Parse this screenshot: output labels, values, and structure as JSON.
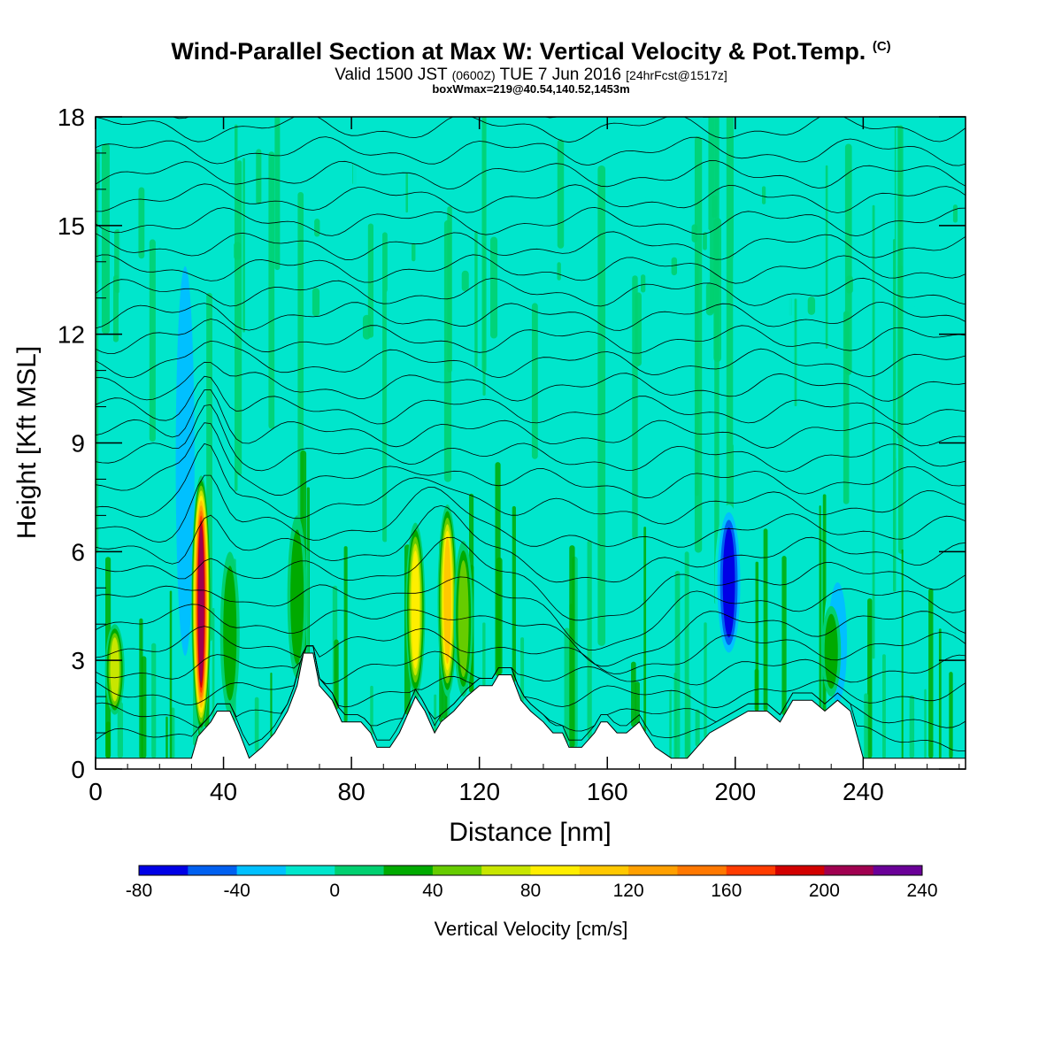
{
  "chart_data": {
    "type": "heatmap",
    "title": "Wind-Parallel Section at Max W: Vertical Velocity & Pot.Temp.",
    "title_mark": "(C)",
    "subtitle_prefix": "Valid 1500 JST",
    "subtitle_zulu": "(0600Z)",
    "subtitle_date": "TUE 7 Jun 2016",
    "subtitle_fcst": "[24hrFcst@1517z]",
    "subtitle2": "boxWmax=219@40.54,140.52,1453m",
    "xlabel": "Distance [nm]",
    "ylabel": "Height [Kft MSL]",
    "xlim": [
      0,
      272
    ],
    "ylim": [
      0,
      18
    ],
    "x_ticks": [
      0,
      40,
      80,
      120,
      160,
      200,
      240
    ],
    "y_ticks": [
      0,
      3,
      6,
      9,
      12,
      15,
      18
    ],
    "colorbar": {
      "label": "Vertical Velocity [cm/s]",
      "min": -80,
      "max": 240,
      "step": 20,
      "tick_values": [
        -80,
        -40,
        0,
        40,
        80,
        120,
        160,
        200,
        240
      ],
      "colors": [
        "#0000e6",
        "#0060f0",
        "#00c0ff",
        "#00e6cc",
        "#00d070",
        "#00aa00",
        "#66cc00",
        "#c8e600",
        "#ffee00",
        "#ffc800",
        "#ffa000",
        "#ff7800",
        "#ff3c00",
        "#d20000",
        "#a00050",
        "#6a0098"
      ]
    },
    "terrain_kft": [
      [
        0,
        0.3
      ],
      [
        10,
        0.3
      ],
      [
        20,
        0.3
      ],
      [
        30,
        0.3
      ],
      [
        32,
        0.9
      ],
      [
        36,
        1.3
      ],
      [
        38,
        1.6
      ],
      [
        42,
        1.6
      ],
      [
        45,
        1.0
      ],
      [
        48,
        0.3
      ],
      [
        52,
        0.6
      ],
      [
        56,
        1.0
      ],
      [
        60,
        1.6
      ],
      [
        63,
        2.3
      ],
      [
        65,
        3.2
      ],
      [
        68,
        3.2
      ],
      [
        70,
        2.3
      ],
      [
        74,
        1.9
      ],
      [
        77,
        1.3
      ],
      [
        80,
        1.3
      ],
      [
        83,
        1.3
      ],
      [
        86,
        1.0
      ],
      [
        88,
        0.6
      ],
      [
        92,
        0.6
      ],
      [
        95,
        1.0
      ],
      [
        98,
        1.6
      ],
      [
        100,
        2.0
      ],
      [
        103,
        1.6
      ],
      [
        106,
        1.0
      ],
      [
        108,
        1.3
      ],
      [
        112,
        1.6
      ],
      [
        116,
        2.0
      ],
      [
        120,
        2.3
      ],
      [
        124,
        2.3
      ],
      [
        126,
        2.6
      ],
      [
        130,
        2.6
      ],
      [
        133,
        1.9
      ],
      [
        136,
        1.6
      ],
      [
        140,
        1.3
      ],
      [
        143,
        1.0
      ],
      [
        146,
        1.0
      ],
      [
        148,
        0.6
      ],
      [
        152,
        0.6
      ],
      [
        156,
        1.0
      ],
      [
        158,
        1.3
      ],
      [
        160,
        1.3
      ],
      [
        163,
        1.0
      ],
      [
        166,
        1.0
      ],
      [
        170,
        1.3
      ],
      [
        172,
        1.0
      ],
      [
        175,
        0.6
      ],
      [
        180,
        0.3
      ],
      [
        185,
        0.3
      ],
      [
        188,
        0.6
      ],
      [
        192,
        1.0
      ],
      [
        198,
        1.3
      ],
      [
        204,
        1.6
      ],
      [
        210,
        1.6
      ],
      [
        214,
        1.3
      ],
      [
        218,
        1.9
      ],
      [
        224,
        1.9
      ],
      [
        228,
        1.6
      ],
      [
        232,
        1.9
      ],
      [
        236,
        1.6
      ],
      [
        240,
        0.3
      ],
      [
        272,
        0.3
      ]
    ],
    "updrafts": [
      {
        "x": 6,
        "z0": 1.5,
        "z1": 4.0,
        "w": 80
      },
      {
        "x": 33,
        "z0": 1.0,
        "z1": 8.1,
        "w": 219
      },
      {
        "x": 42,
        "z0": 1.5,
        "z1": 6.0,
        "w": 40
      },
      {
        "x": 63,
        "z0": 2.5,
        "z1": 7.0,
        "w": 40
      },
      {
        "x": 100,
        "z0": 2.0,
        "z1": 6.8,
        "w": 100
      },
      {
        "x": 110,
        "z0": 2.0,
        "z1": 7.3,
        "w": 120
      },
      {
        "x": 115,
        "z0": 2.0,
        "z1": 6.3,
        "w": 60
      },
      {
        "x": 230,
        "z0": 2.0,
        "z1": 4.5,
        "w": 40
      }
    ],
    "downdrafts": [
      {
        "x": 28,
        "z0": 2.0,
        "z1": 15.0,
        "w": -40
      },
      {
        "x": 198,
        "z0": 3.0,
        "z1": 7.3,
        "w": -80
      },
      {
        "x": 232,
        "z0": 1.5,
        "z1": 5.5,
        "w": -40
      }
    ],
    "theta_contour_levels_count": 28
  }
}
